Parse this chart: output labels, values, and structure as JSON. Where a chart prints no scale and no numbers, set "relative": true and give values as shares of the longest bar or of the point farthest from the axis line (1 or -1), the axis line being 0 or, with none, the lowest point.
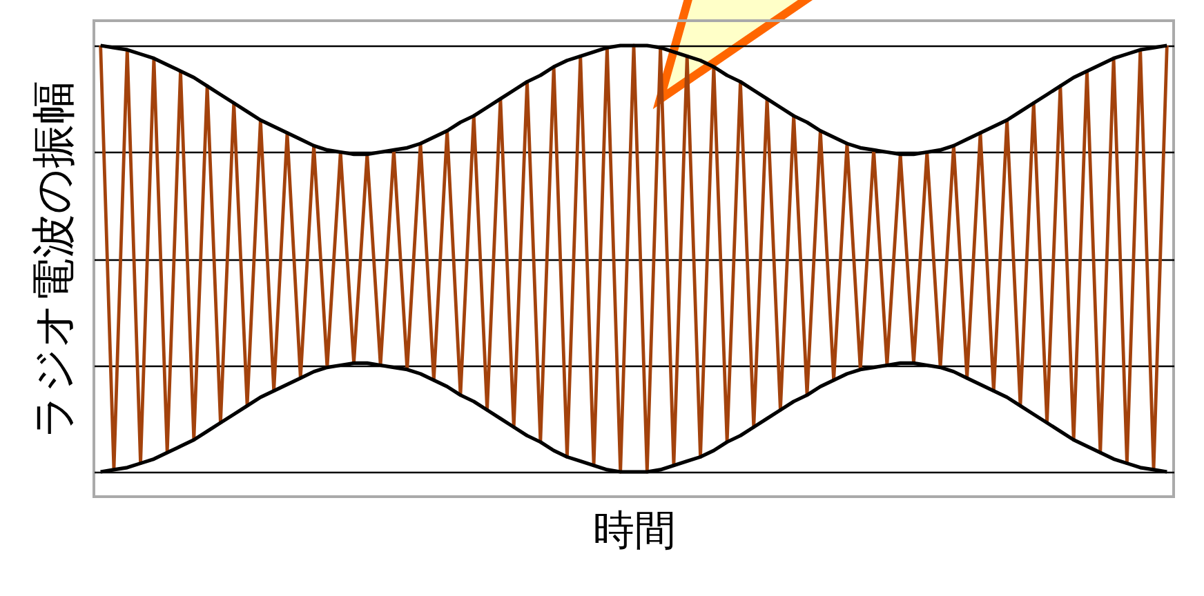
{
  "chart_data": {
    "type": "line",
    "relative": true,
    "xlabel": "時間",
    "ylabel": "ラジオ電波の振幅",
    "categories": [
      null,
      null,
      null,
      null,
      null,
      null,
      null,
      null,
      null,
      null,
      null,
      null,
      null,
      null,
      null,
      null,
      null,
      null,
      null,
      null,
      null,
      null,
      null,
      null,
      null,
      null,
      null,
      null,
      null,
      null,
      null,
      null,
      null,
      null,
      null,
      null,
      null,
      null,
      null,
      null,
      null,
      null,
      null,
      null,
      null,
      null,
      null,
      null,
      null,
      null,
      null,
      null,
      null,
      null,
      null,
      null,
      null,
      null,
      null,
      null,
      null,
      null,
      null,
      null,
      null,
      null,
      null,
      null,
      null,
      null,
      null,
      null,
      null,
      null,
      null,
      null,
      null,
      null,
      null,
      null,
      null
    ],
    "grid": "y",
    "series": [
      {
        "color": "#a3420c",
        "values": [
          1.0,
          -0.99,
          0.98,
          -0.96,
          0.94,
          -0.91,
          0.88,
          -0.85,
          0.81,
          -0.77,
          0.73,
          -0.69,
          0.65,
          -0.62,
          0.59,
          -0.56,
          0.53,
          -0.51,
          0.5,
          -0.49,
          0.49,
          -0.5,
          0.51,
          -0.52,
          0.54,
          -0.57,
          0.6,
          -0.64,
          0.67,
          -0.71,
          0.75,
          -0.79,
          0.83,
          -0.86,
          0.9,
          -0.93,
          0.95,
          -0.97,
          0.99,
          -1.0,
          1.0,
          -1.0,
          0.99,
          -0.97,
          0.95,
          -0.93,
          0.9,
          -0.86,
          0.83,
          -0.79,
          0.75,
          -0.71,
          0.67,
          -0.64,
          0.6,
          -0.57,
          0.54,
          -0.52,
          0.51,
          -0.5,
          0.49,
          -0.49,
          0.5,
          -0.51,
          0.53,
          -0.56,
          0.59,
          -0.62,
          0.65,
          -0.69,
          0.73,
          -0.77,
          0.81,
          -0.85,
          0.88,
          -0.91,
          0.94,
          -0.96,
          0.98,
          -0.99,
          1.0
        ]
      },
      {
        "color": "#000000",
        "values": [
          1.0,
          0.99,
          0.98,
          0.96,
          0.94,
          0.91,
          0.88,
          0.85,
          0.81,
          0.77,
          0.73,
          0.69,
          0.65,
          0.62,
          0.59,
          0.56,
          0.53,
          0.51,
          0.5,
          0.49,
          0.49,
          0.5,
          0.51,
          0.52,
          0.54,
          0.57,
          0.6,
          0.64,
          0.67,
          0.71,
          0.75,
          0.79,
          0.83,
          0.86,
          0.9,
          0.93,
          0.95,
          0.97,
          0.99,
          1.0,
          1.0,
          1.0,
          0.99,
          0.97,
          0.95,
          0.93,
          0.9,
          0.86,
          0.83,
          0.79,
          0.75,
          0.71,
          0.67,
          0.64,
          0.6,
          0.57,
          0.54,
          0.52,
          0.51,
          0.5,
          0.49,
          0.49,
          0.5,
          0.51,
          0.53,
          0.56,
          0.59,
          0.62,
          0.65,
          0.69,
          0.73,
          0.77,
          0.81,
          0.85,
          0.88,
          0.91,
          0.94,
          0.96,
          0.98,
          0.99,
          1.0
        ]
      },
      {
        "color": "#000000",
        "values": [
          -1.0,
          -0.99,
          -0.98,
          -0.96,
          -0.94,
          -0.91,
          -0.88,
          -0.85,
          -0.81,
          -0.77,
          -0.73,
          -0.69,
          -0.65,
          -0.62,
          -0.59,
          -0.56,
          -0.53,
          -0.51,
          -0.5,
          -0.49,
          -0.49,
          -0.5,
          -0.51,
          -0.52,
          -0.54,
          -0.57,
          -0.6,
          -0.64,
          -0.67,
          -0.71,
          -0.75,
          -0.79,
          -0.83,
          -0.86,
          -0.9,
          -0.93,
          -0.95,
          -0.97,
          -0.99,
          -1.0,
          -1.0,
          -1.0,
          -0.99,
          -0.97,
          -0.95,
          -0.93,
          -0.9,
          -0.86,
          -0.83,
          -0.79,
          -0.75,
          -0.71,
          -0.67,
          -0.64,
          -0.6,
          -0.57,
          -0.54,
          -0.52,
          -0.51,
          -0.5,
          -0.49,
          -0.49,
          -0.5,
          -0.51,
          -0.53,
          -0.56,
          -0.59,
          -0.62,
          -0.65,
          -0.69,
          -0.73,
          -0.77,
          -0.81,
          -0.85,
          -0.88,
          -0.91,
          -0.94,
          -0.96,
          -0.98,
          -0.99,
          -1.0
        ]
      }
    ]
  }
}
